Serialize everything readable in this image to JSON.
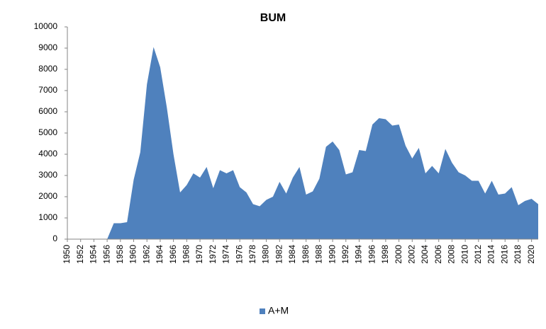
{
  "chart_data": {
    "type": "area",
    "title": "BUM",
    "x": [
      1950,
      1951,
      1952,
      1953,
      1954,
      1955,
      1956,
      1957,
      1958,
      1959,
      1960,
      1961,
      1962,
      1963,
      1964,
      1965,
      1966,
      1967,
      1968,
      1969,
      1970,
      1971,
      1972,
      1973,
      1974,
      1975,
      1976,
      1977,
      1978,
      1979,
      1980,
      1981,
      1982,
      1983,
      1984,
      1985,
      1986,
      1987,
      1988,
      1989,
      1990,
      1991,
      1992,
      1993,
      1994,
      1995,
      1996,
      1997,
      1998,
      1999,
      2000,
      2001,
      2002,
      2003,
      2004,
      2005,
      2006,
      2007,
      2008,
      2009,
      2010,
      2011,
      2012,
      2013,
      2014,
      2015,
      2016,
      2017,
      2018,
      2019,
      2020,
      2021
    ],
    "series": [
      {
        "name": "A+M",
        "color": "#4f81bd",
        "values": [
          0,
          0,
          0,
          0,
          0,
          0,
          0,
          750,
          750,
          800,
          2800,
          4100,
          7300,
          9050,
          8100,
          6200,
          4000,
          2200,
          2550,
          3100,
          2900,
          3400,
          2400,
          3250,
          3100,
          3250,
          2450,
          2200,
          1650,
          1550,
          1850,
          2000,
          2700,
          2150,
          2900,
          3400,
          2100,
          2250,
          2850,
          4350,
          4600,
          4200,
          3050,
          3150,
          4200,
          4150,
          5400,
          5700,
          5650,
          5350,
          5400,
          4400,
          3800,
          4300,
          3100,
          3450,
          3100,
          4250,
          3600,
          3150,
          3000,
          2750,
          2750,
          2150,
          2750,
          2100,
          2150,
          2450,
          1600,
          1800,
          1900,
          1650
        ]
      }
    ],
    "xlim": [
      1950,
      2021
    ],
    "xticks": [
      1950,
      1952,
      1954,
      1956,
      1958,
      1960,
      1962,
      1964,
      1966,
      1968,
      1970,
      1972,
      1974,
      1976,
      1978,
      1980,
      1982,
      1984,
      1986,
      1988,
      1990,
      1992,
      1994,
      1996,
      1998,
      2000,
      2002,
      2004,
      2006,
      2008,
      2010,
      2012,
      2014,
      2016,
      2018,
      2020
    ],
    "ylim": [
      0,
      10000
    ],
    "yticks": [
      0,
      1000,
      2000,
      3000,
      4000,
      5000,
      6000,
      7000,
      8000,
      9000,
      10000
    ],
    "grid": false,
    "legend": "bottom"
  }
}
